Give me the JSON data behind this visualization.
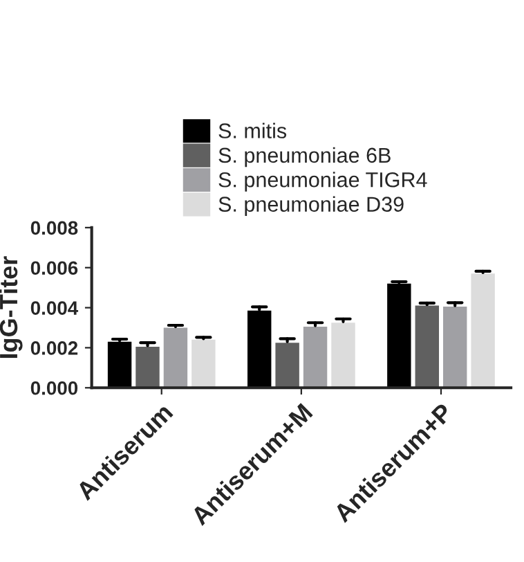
{
  "chart_data": {
    "type": "bar",
    "ylabel": "IgG-Titer",
    "categories": [
      "Antiserum",
      "Antiserum+M",
      "Antiserum+P"
    ],
    "series": [
      {
        "name": "S. mitis",
        "color": "#000000",
        "values": [
          0.00235,
          0.0039,
          0.00525
        ],
        "errors": [
          [
            0.00235,
            0.00243
          ],
          [
            0.0039,
            0.00404
          ],
          [
            0.00525,
            0.0053
          ]
        ]
      },
      {
        "name": "S. pneumoniae 6B",
        "color": "#606060",
        "values": [
          0.0021,
          0.0023,
          0.00415
        ],
        "errors": [
          [
            0.0021,
            0.00225
          ],
          [
            0.0023,
            0.00245
          ],
          [
            0.00415,
            0.00423
          ]
        ]
      },
      {
        "name": "S. pneumoniae TIGR4",
        "color": "#a0a0a4",
        "values": [
          0.00305,
          0.0031,
          0.0041
        ],
        "errors": [
          [
            0.00305,
            0.00312
          ],
          [
            0.0031,
            0.00325
          ],
          [
            0.0041,
            0.00425
          ]
        ]
      },
      {
        "name": "S. pneumoniae D39",
        "color": "#dcdcdc",
        "values": [
          0.00245,
          0.0033,
          0.00575
        ],
        "errors": [
          [
            0.00245,
            0.00252
          ],
          [
            0.0033,
            0.00344
          ],
          [
            0.00575,
            0.00582
          ]
        ]
      }
    ],
    "ylim": [
      0,
      0.008
    ],
    "yticks": [
      {
        "value": 0,
        "label": "0.000"
      },
      {
        "value": 0.002,
        "label": "0.002"
      },
      {
        "value": 0.004,
        "label": "0.004"
      },
      {
        "value": 0.006,
        "label": "0.006"
      },
      {
        "value": 0.008,
        "label": "0.008"
      }
    ],
    "grid": false,
    "legend": "top"
  }
}
